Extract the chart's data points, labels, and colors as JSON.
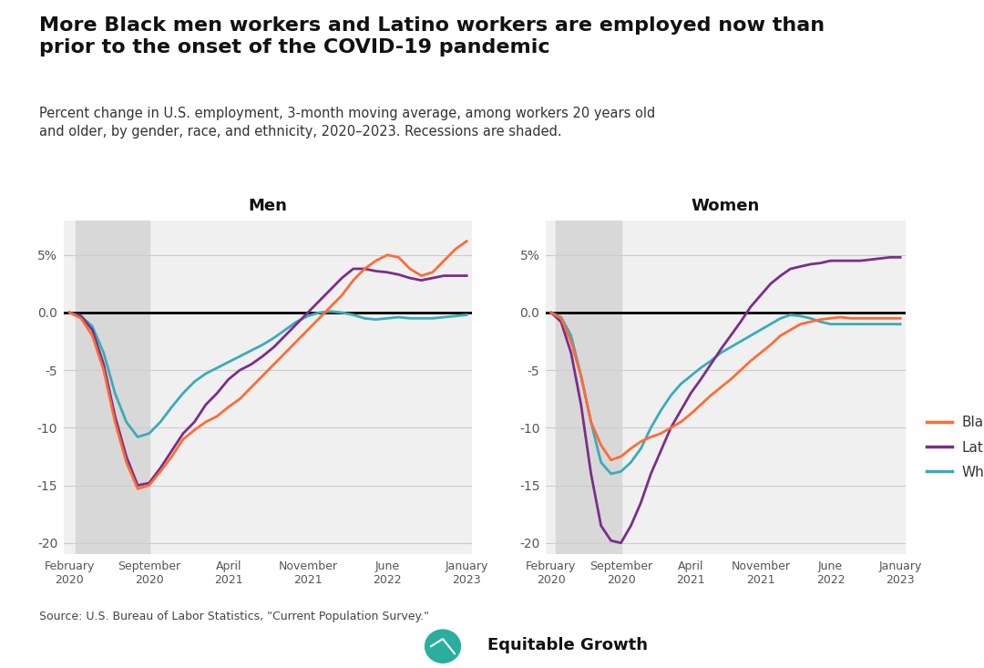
{
  "title": "More Black men workers and Latino workers are employed now than\nprior to the onset of the COVID-19 pandemic",
  "subtitle": "Percent change in U.S. employment, 3-month moving average, among workers 20 years old\nand older, by gender, race, and ethnicity, 2020–2023. Recessions are shaded.",
  "source": "Source: U.S. Bureau of Labor Statistics, \"Current Population Survey.\"",
  "background_color": "#ffffff",
  "plot_bg_color": "#f0f0f0",
  "panel_titles": [
    "Men",
    "Women"
  ],
  "colors": {
    "Black": "#FF6B35",
    "Latino": "#7B2D8B",
    "White": "#3AACB8"
  },
  "recession_color": "#d8d8d8",
  "ylim": [
    -21,
    8
  ],
  "yticks": [
    5,
    0,
    -5,
    -10,
    -15,
    -20
  ],
  "ytick_labels": [
    "5%",
    "0.0",
    "-5",
    "-10",
    "-15",
    "-20"
  ],
  "xtick_labels": [
    "February\n2020",
    "September\n2020",
    "April\n2021",
    "November\n2021",
    "June\n2022",
    "January\n2023"
  ],
  "xtick_positions": [
    0,
    7,
    14,
    21,
    28,
    35
  ],
  "n_points": 36,
  "recession_start": 0.5,
  "recession_end": 7,
  "men_black": [
    0.0,
    -0.5,
    -2.0,
    -5.0,
    -9.5,
    -13.0,
    -15.3,
    -15.0,
    -13.8,
    -12.5,
    -11.0,
    -10.2,
    -9.5,
    -9.0,
    -8.2,
    -7.5,
    -6.5,
    -5.5,
    -4.5,
    -3.5,
    -2.5,
    -1.5,
    -0.5,
    0.5,
    1.5,
    2.8,
    3.8,
    4.5,
    5.0,
    4.8,
    3.8,
    3.2,
    3.5,
    4.5,
    5.5,
    6.2
  ],
  "men_latino": [
    0.0,
    -0.3,
    -1.5,
    -4.5,
    -9.0,
    -12.5,
    -15.0,
    -14.8,
    -13.5,
    -12.0,
    -10.5,
    -9.5,
    -8.0,
    -7.0,
    -5.8,
    -5.0,
    -4.5,
    -3.8,
    -3.0,
    -2.0,
    -1.0,
    0.0,
    1.0,
    2.0,
    3.0,
    3.8,
    3.8,
    3.6,
    3.5,
    3.3,
    3.0,
    2.8,
    3.0,
    3.2,
    3.2,
    3.2
  ],
  "men_white": [
    0.0,
    -0.3,
    -1.2,
    -3.5,
    -7.0,
    -9.5,
    -10.8,
    -10.5,
    -9.5,
    -8.2,
    -7.0,
    -6.0,
    -5.3,
    -4.8,
    -4.3,
    -3.8,
    -3.3,
    -2.8,
    -2.2,
    -1.5,
    -0.8,
    -0.3,
    0.0,
    0.1,
    0.0,
    -0.2,
    -0.5,
    -0.6,
    -0.5,
    -0.4,
    -0.5,
    -0.5,
    -0.5,
    -0.4,
    -0.3,
    -0.2
  ],
  "women_black": [
    0.0,
    -0.5,
    -2.5,
    -5.5,
    -9.5,
    -11.5,
    -12.8,
    -12.5,
    -11.8,
    -11.2,
    -10.8,
    -10.5,
    -10.0,
    -9.5,
    -8.8,
    -8.0,
    -7.2,
    -6.5,
    -5.8,
    -5.0,
    -4.2,
    -3.5,
    -2.8,
    -2.0,
    -1.5,
    -1.0,
    -0.8,
    -0.6,
    -0.5,
    -0.4,
    -0.5,
    -0.5,
    -0.5,
    -0.5,
    -0.5,
    -0.5
  ],
  "women_latino": [
    0.0,
    -0.8,
    -3.5,
    -8.0,
    -14.0,
    -18.5,
    -19.8,
    -20.0,
    -18.5,
    -16.5,
    -14.0,
    -12.0,
    -10.0,
    -8.5,
    -7.0,
    -5.8,
    -4.5,
    -3.2,
    -2.0,
    -0.8,
    0.5,
    1.5,
    2.5,
    3.2,
    3.8,
    4.0,
    4.2,
    4.3,
    4.5,
    4.5,
    4.5,
    4.5,
    4.6,
    4.7,
    4.8,
    4.8
  ],
  "women_white": [
    0.0,
    -0.4,
    -2.0,
    -5.5,
    -9.5,
    -13.0,
    -14.0,
    -13.8,
    -13.0,
    -11.8,
    -10.0,
    -8.5,
    -7.2,
    -6.2,
    -5.5,
    -4.8,
    -4.2,
    -3.5,
    -3.0,
    -2.5,
    -2.0,
    -1.5,
    -1.0,
    -0.5,
    -0.2,
    -0.3,
    -0.5,
    -0.8,
    -1.0,
    -1.0,
    -1.0,
    -1.0,
    -1.0,
    -1.0,
    -1.0,
    -1.0
  ]
}
